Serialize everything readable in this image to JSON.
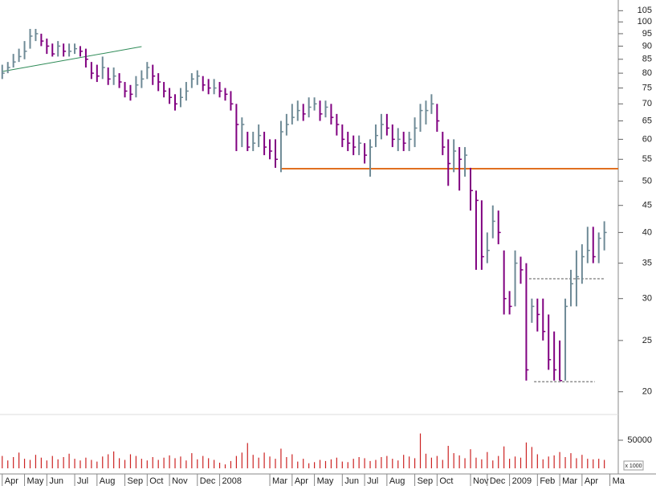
{
  "chart_data": {
    "type": "ohlc",
    "log_scale": true,
    "up_color": "#6e8a96",
    "down_color": "#800080",
    "x": [
      0,
      1,
      2,
      3,
      4,
      5,
      6,
      7,
      8,
      9,
      10,
      11,
      12,
      13,
      14,
      15,
      16,
      17,
      18,
      19,
      20,
      21,
      22,
      23,
      24,
      25,
      26,
      27,
      28,
      29,
      30,
      31,
      32,
      33,
      34,
      35,
      36,
      37,
      38,
      39,
      40,
      41,
      42,
      43,
      44,
      45,
      46,
      47,
      48,
      49,
      50,
      51,
      52,
      53,
      54,
      55,
      56,
      57,
      58,
      59,
      60,
      61,
      62,
      63,
      64,
      65,
      66,
      67,
      68,
      69,
      70,
      71,
      72,
      73,
      74,
      75,
      76,
      77,
      78,
      79,
      80,
      81,
      82,
      83,
      84,
      85,
      86,
      87,
      88,
      89,
      90,
      91,
      92,
      93,
      94,
      95,
      96,
      97,
      98,
      99,
      100,
      101,
      102,
      103,
      104,
      105,
      106,
      107,
      108
    ],
    "high": [
      83,
      84,
      87,
      89,
      92,
      97,
      97,
      95,
      93,
      91,
      92,
      91,
      91,
      91,
      90,
      89,
      84,
      83,
      86,
      82,
      82,
      80,
      77,
      76,
      79,
      81,
      84,
      83,
      80,
      77,
      75,
      73,
      75,
      77,
      80,
      81,
      79,
      78,
      78,
      77,
      75,
      74,
      70,
      66,
      62,
      62,
      64,
      62,
      60,
      60,
      65,
      67,
      70,
      71,
      70,
      72,
      72,
      71,
      71,
      70,
      67,
      64,
      62,
      61,
      61,
      59,
      60,
      64,
      67,
      67,
      64,
      63,
      62,
      62,
      66,
      70,
      71,
      73,
      70,
      62,
      60,
      60,
      58,
      58,
      53,
      48,
      46,
      40,
      45,
      44,
      37,
      31,
      37,
      36,
      35,
      30,
      30,
      30,
      28,
      26,
      25,
      30,
      34,
      37,
      38,
      41,
      41,
      40,
      42
    ],
    "low": [
      78,
      80,
      82,
      84,
      85,
      89,
      92,
      90,
      87,
      86,
      86,
      86,
      86,
      87,
      86,
      82,
      78,
      77,
      78,
      76,
      76,
      75,
      72,
      71,
      72,
      75,
      78,
      76,
      74,
      72,
      70,
      68,
      69,
      71,
      75,
      76,
      74,
      73,
      73,
      72,
      71,
      68,
      57,
      58,
      57,
      57,
      58,
      56,
      55,
      53,
      52,
      61,
      64,
      65,
      65,
      66,
      68,
      65,
      66,
      64,
      61,
      58,
      57,
      56,
      56,
      54,
      51,
      58,
      60,
      61,
      58,
      57,
      57,
      57,
      58,
      62,
      64,
      67,
      62,
      56,
      49,
      52,
      48,
      51,
      44,
      34,
      34,
      35,
      39,
      38,
      28,
      28,
      29,
      32,
      21,
      27,
      26,
      25,
      22,
      21,
      21,
      21,
      29,
      29,
      32,
      35,
      35,
      35,
      37
    ],
    "close": [
      80,
      82,
      84,
      86,
      88,
      94,
      95,
      92,
      90,
      87,
      90,
      88,
      88,
      89,
      88,
      85,
      80,
      79,
      82,
      78,
      79,
      77,
      74,
      73,
      76,
      78,
      82,
      79,
      77,
      74,
      72,
      70,
      72,
      74,
      78,
      79,
      76,
      75,
      75,
      74,
      73,
      70,
      64,
      64,
      58,
      59,
      61,
      58,
      57,
      55,
      62,
      64,
      66,
      68,
      67,
      69,
      70,
      67,
      69,
      66,
      64,
      60,
      59,
      58,
      59,
      56,
      58,
      61,
      64,
      63,
      60,
      60,
      59,
      60,
      63,
      68,
      68,
      70,
      65,
      58,
      54,
      57,
      55,
      56,
      48,
      46,
      36,
      37,
      42,
      40,
      30,
      29,
      35,
      34,
      22,
      29,
      28,
      26,
      23,
      22,
      21,
      29,
      32,
      33,
      36,
      37,
      36,
      39,
      40
    ],
    "xlim": [
      -0.4,
      110.5
    ],
    "ylim": [
      18.5,
      110
    ],
    "yticks": [
      20,
      25,
      30,
      35,
      40,
      45,
      50,
      55,
      60,
      65,
      70,
      75,
      80,
      85,
      90,
      95,
      100,
      105
    ],
    "xticks": [
      {
        "value": 0,
        "label": "Apr"
      },
      {
        "value": 4,
        "label": "May"
      },
      {
        "value": 8,
        "label": "Jun"
      },
      {
        "value": 13,
        "label": "Jul"
      },
      {
        "value": 17,
        "label": "Aug"
      },
      {
        "value": 22,
        "label": "Sep"
      },
      {
        "value": 26,
        "label": "Oct"
      },
      {
        "value": 30,
        "label": "Nov"
      },
      {
        "value": 35,
        "label": "Dec"
      },
      {
        "value": 39,
        "label": "2008"
      },
      {
        "value": 48,
        "label": "Mar"
      },
      {
        "value": 52,
        "label": "Apr"
      },
      {
        "value": 56,
        "label": "May"
      },
      {
        "value": 61,
        "label": "Jun"
      },
      {
        "value": 65,
        "label": "Jul"
      },
      {
        "value": 69,
        "label": "Aug"
      },
      {
        "value": 74,
        "label": "Sep"
      },
      {
        "value": 78,
        "label": "Oct"
      },
      {
        "value": 84,
        "label": "Nov"
      },
      {
        "value": 87,
        "label": "Dec"
      },
      {
        "value": 91,
        "label": "2009"
      },
      {
        "value": 96,
        "label": "Feb"
      },
      {
        "value": 100,
        "label": "Mar"
      },
      {
        "value": 104,
        "label": "Apr"
      },
      {
        "value": 109,
        "label": "Ma"
      }
    ],
    "lines": [
      {
        "x": [
          0,
          25
        ],
        "y": [
          80.6,
          89.8
        ],
        "color": "#2e8b57",
        "dashed": false
      },
      {
        "x": [
          50,
          110.5
        ],
        "y": [
          52.8,
          52.8
        ],
        "color": "#e07020",
        "dashed": false
      },
      {
        "x": [
          94.5,
          108
        ],
        "y": [
          32.7,
          32.7
        ],
        "color": "#555555",
        "dashed": true
      },
      {
        "x": [
          95.4,
          106.3
        ],
        "y": [
          20.9,
          20.9
        ],
        "color": "#555555",
        "dashed": true
      }
    ],
    "volume": {
      "values": [
        22000,
        14000,
        20000,
        28000,
        17000,
        15000,
        24000,
        19000,
        14000,
        22000,
        16000,
        20000,
        26000,
        17000,
        14000,
        19000,
        15000,
        12000,
        21000,
        25000,
        30000,
        18000,
        15000,
        25000,
        22000,
        17000,
        14000,
        20000,
        15000,
        19000,
        23000,
        18000,
        21000,
        14000,
        27000,
        16000,
        22000,
        18000,
        15000,
        10000,
        7000,
        13000,
        22000,
        28000,
        45000,
        24000,
        19000,
        28000,
        21000,
        17000,
        35000,
        20000,
        25000,
        12000,
        17000,
        9000,
        11000,
        15000,
        13000,
        16000,
        19000,
        12000,
        11000,
        17000,
        20000,
        18000,
        13000,
        15000,
        20000,
        22000,
        17000,
        14000,
        24000,
        21000,
        18000,
        62000,
        26000,
        19000,
        22000,
        15000,
        40000,
        27000,
        23000,
        18000,
        34000,
        19000,
        16000,
        29000,
        14000,
        22000,
        39000,
        17000,
        21000,
        19000,
        46000,
        38000,
        25000,
        16000,
        21000,
        23000,
        29000,
        20000,
        27000,
        18000,
        24000,
        17000,
        16000,
        17000,
        15000
      ],
      "color": "#cc2222",
      "ylim": [
        0,
        90000
      ],
      "yticks": [
        50000
      ],
      "scale_label": "x 1000"
    }
  }
}
